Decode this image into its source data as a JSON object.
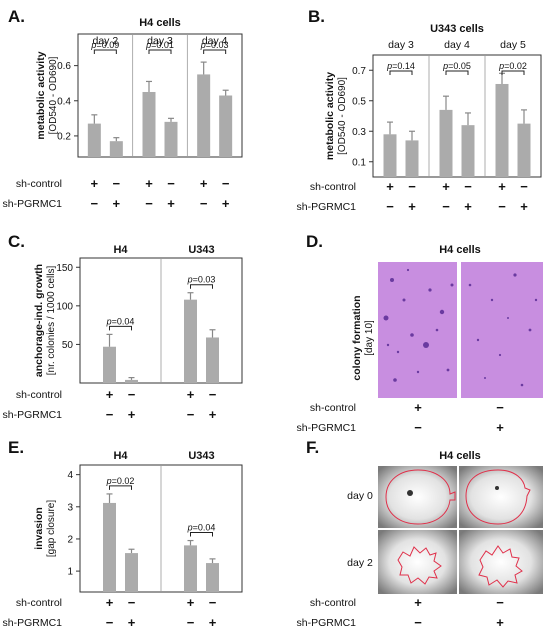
{
  "chart_data": [
    {
      "panel": "A.",
      "type": "bar",
      "title": "H4 cells",
      "ylabel": "metabolic activity",
      "ylabel_sub": "[OD540 - OD690]",
      "yticks": [
        0.2,
        0.4,
        0.6
      ],
      "ylim": [
        0.08,
        0.78
      ],
      "groups": [
        "day 2",
        "day 3",
        "day 4"
      ],
      "series": [
        {
          "condition": "sh-control",
          "values": [
            0.27,
            0.45,
            0.55
          ],
          "errors": [
            0.05,
            0.06,
            0.07
          ]
        },
        {
          "condition": "sh-PGRMC1",
          "values": [
            0.17,
            0.28,
            0.43
          ],
          "errors": [
            0.02,
            0.02,
            0.03
          ]
        }
      ],
      "pvalues": [
        "p=0.09",
        "p=0.01",
        "p=0.03"
      ],
      "rows": [
        {
          "label": "sh-control",
          "signs": [
            "+",
            "−",
            "+",
            "−",
            "+",
            "−"
          ]
        },
        {
          "label": "sh-PGRMC1",
          "signs": [
            "−",
            "+",
            "−",
            "+",
            "−",
            "+"
          ]
        }
      ]
    },
    {
      "panel": "B.",
      "type": "bar",
      "title": "U343 cells",
      "ylabel": "metabolic activity",
      "ylabel_sub": "[OD540 - OD690]",
      "yticks": [
        0.1,
        0.3,
        0.5,
        0.7
      ],
      "ylim": [
        0.0,
        0.8
      ],
      "groups": [
        "day 3",
        "day 4",
        "day 5"
      ],
      "series": [
        {
          "condition": "sh-control",
          "values": [
            0.28,
            0.44,
            0.61
          ],
          "errors": [
            0.08,
            0.09,
            0.07
          ]
        },
        {
          "condition": "sh-PGRMC1",
          "values": [
            0.24,
            0.34,
            0.35
          ],
          "errors": [
            0.06,
            0.08,
            0.09
          ]
        }
      ],
      "pvalues": [
        "p=0.14",
        "p=0.05",
        "p=0.02"
      ],
      "rows": [
        {
          "label": "sh-control",
          "signs": [
            "+",
            "−",
            "+",
            "−",
            "+",
            "−"
          ]
        },
        {
          "label": "sh-PGRMC1",
          "signs": [
            "−",
            "+",
            "−",
            "+",
            "−",
            "+"
          ]
        }
      ]
    },
    {
      "panel": "C.",
      "type": "bar",
      "title": "",
      "ylabel": "anchorage-ind. growth",
      "ylabel_sub": "[nr. colonies / 1000 cells]",
      "yticks": [
        50,
        100,
        150
      ],
      "ylim": [
        0,
        162
      ],
      "groups": [
        "H4",
        "U343"
      ],
      "series": [
        {
          "condition": "sh-control",
          "values": [
            47,
            108
          ],
          "errors": [
            16,
            9
          ]
        },
        {
          "condition": "sh-PGRMC1",
          "values": [
            4,
            59
          ],
          "errors": [
            3,
            10
          ]
        }
      ],
      "pvalues": [
        "p=0.04",
        "p=0.03"
      ],
      "rows": [
        {
          "label": "sh-control",
          "signs": [
            "+",
            "−",
            "+",
            "−"
          ]
        },
        {
          "label": "sh-PGRMC1",
          "signs": [
            "−",
            "+",
            "−",
            "+"
          ]
        }
      ]
    },
    {
      "panel": "E.",
      "type": "bar",
      "title": "",
      "ylabel": "invasion",
      "ylabel_sub": "[gap closure]",
      "yticks": [
        1,
        2,
        3,
        4
      ],
      "ylim": [
        0.35,
        4.3
      ],
      "groups": [
        "H4",
        "U343"
      ],
      "series": [
        {
          "condition": "sh-control",
          "values": [
            3.12,
            1.8
          ],
          "errors": [
            0.28,
            0.15
          ]
        },
        {
          "condition": "sh-PGRMC1",
          "values": [
            1.56,
            1.25
          ],
          "errors": [
            0.12,
            0.13
          ]
        }
      ],
      "pvalues": [
        "p=0.02",
        "p=0.04"
      ],
      "rows": [
        {
          "label": "sh-control",
          "signs": [
            "+",
            "−",
            "+",
            "−"
          ]
        },
        {
          "label": "sh-PGRMC1",
          "signs": [
            "−",
            "+",
            "−",
            "+"
          ]
        }
      ]
    }
  ],
  "panel_D": {
    "letter": "D.",
    "title": "H4 cells",
    "ylabel": "colony formation",
    "ylabel_sub": "[day 10]",
    "rows": [
      {
        "label": "sh-control",
        "signs": [
          "+",
          "−"
        ]
      },
      {
        "label": "sh-PGRMC1",
        "signs": [
          "−",
          "+"
        ]
      }
    ],
    "well_color": "#c88ee0"
  },
  "panel_F": {
    "letter": "F.",
    "title": "H4 cells",
    "row_labels": [
      "day 0",
      "day 2"
    ],
    "rows": [
      {
        "label": "sh-control",
        "signs": [
          "+",
          "−"
        ]
      },
      {
        "label": "sh-PGRMC1",
        "signs": [
          "−",
          "+"
        ]
      }
    ],
    "outline_color": "#e0304a"
  },
  "colors": {
    "bar": "#ababab",
    "error": "#888888"
  }
}
